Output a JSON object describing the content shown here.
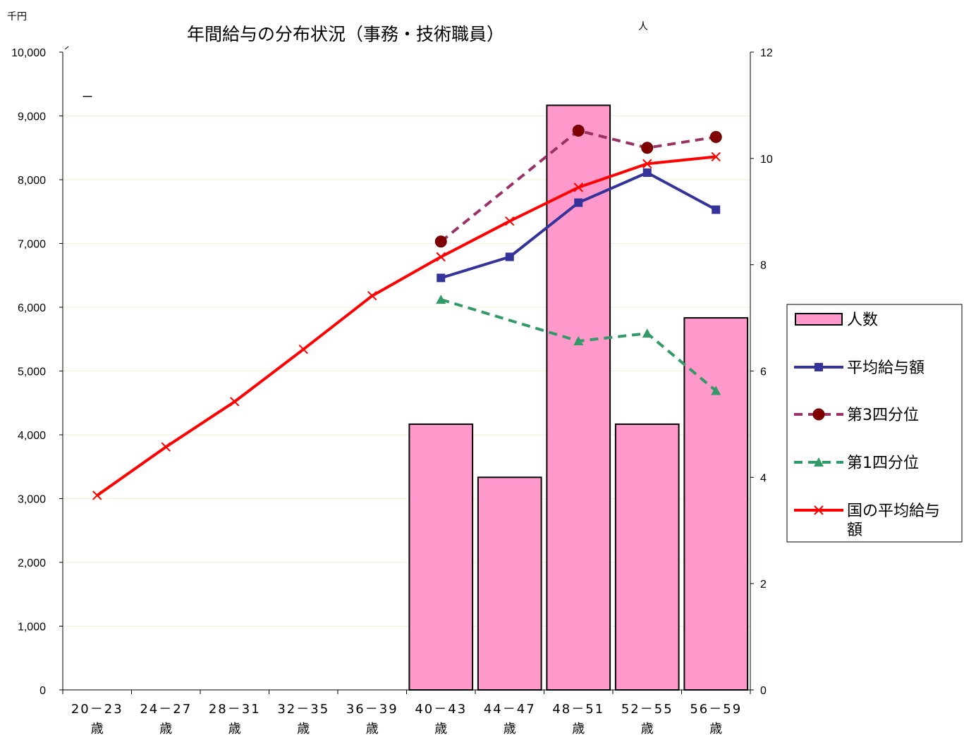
{
  "chart_data": {
    "type": "bar",
    "title": "年間給与の分布状況（事務・技術職員）",
    "y_left_unit": "千円",
    "y_right_unit": "人",
    "y_left_ticks": [
      "10,000",
      "9,000",
      "8,000",
      "7,000",
      "6,000",
      "5,000",
      "4,000",
      "3,000",
      "2,000",
      "1,000",
      "0"
    ],
    "y_right_ticks": [
      "12",
      "10",
      "8",
      "6",
      "4",
      "2",
      "0"
    ],
    "ylim_left": [
      0,
      10000
    ],
    "ylim_right": [
      0,
      12
    ],
    "categories": [
      [
        "20－23",
        "歳"
      ],
      [
        "24－27",
        "歳"
      ],
      [
        "28－31",
        "歳"
      ],
      [
        "32－35",
        "歳"
      ],
      [
        "36－39",
        "歳"
      ],
      [
        "40－43",
        "歳"
      ],
      [
        "44－47",
        "歳"
      ],
      [
        "48－51",
        "歳"
      ],
      [
        "52－55",
        "歳"
      ],
      [
        "56－59",
        "歳"
      ]
    ],
    "series": [
      {
        "name": "人数",
        "type": "bar",
        "axis": "right",
        "color": "#ff99cc",
        "values": [
          null,
          null,
          null,
          null,
          null,
          5,
          4,
          11,
          5,
          7
        ]
      },
      {
        "name": "平均給与額",
        "type": "line",
        "axis": "left",
        "color": "#333399",
        "marker": "square",
        "dash": "solid",
        "values": [
          null,
          null,
          null,
          null,
          null,
          6460,
          6790,
          7640,
          8110,
          7530
        ]
      },
      {
        "name": "第3四分位",
        "type": "line",
        "axis": "left",
        "color": "#993366",
        "marker": "circle",
        "dash": "dashed",
        "values": [
          null,
          null,
          null,
          null,
          null,
          7030,
          null,
          8770,
          8500,
          8670
        ]
      },
      {
        "name": "第1四分位",
        "type": "line",
        "axis": "left",
        "color": "#339966",
        "marker": "triangle",
        "dash": "dashed",
        "values": [
          null,
          null,
          null,
          null,
          null,
          6120,
          null,
          5470,
          5590,
          4690
        ]
      },
      {
        "name": "国の平均給与額",
        "type": "line",
        "axis": "left",
        "color": "#ff0000",
        "marker": "x",
        "dash": "solid",
        "values": [
          3050,
          3810,
          4520,
          5340,
          6180,
          6790,
          7350,
          7880,
          8250,
          8360
        ]
      }
    ],
    "grid": true,
    "legend_position": "right",
    "annotation": "ー"
  }
}
